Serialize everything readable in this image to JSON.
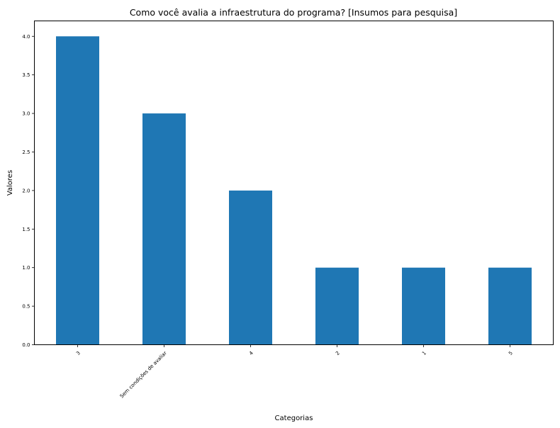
{
  "chart_data": {
    "type": "bar",
    "title": "Como você avalia a infraestrutura do programa? [Insumos para pesquisa]",
    "xlabel": "Categorias",
    "ylabel": "Valores",
    "categories": [
      "3",
      "Sem condições de avaliar",
      "4",
      "2",
      "1",
      "5"
    ],
    "values": [
      4,
      3,
      2,
      1,
      1,
      1
    ],
    "ylim": [
      0,
      4.2
    ],
    "yticks": [
      "0.0",
      "0.5",
      "1.0",
      "1.5",
      "2.0",
      "2.5",
      "3.0",
      "3.5",
      "4.0"
    ],
    "grid": false,
    "legend": false,
    "bar_color": "#1f77b4"
  }
}
